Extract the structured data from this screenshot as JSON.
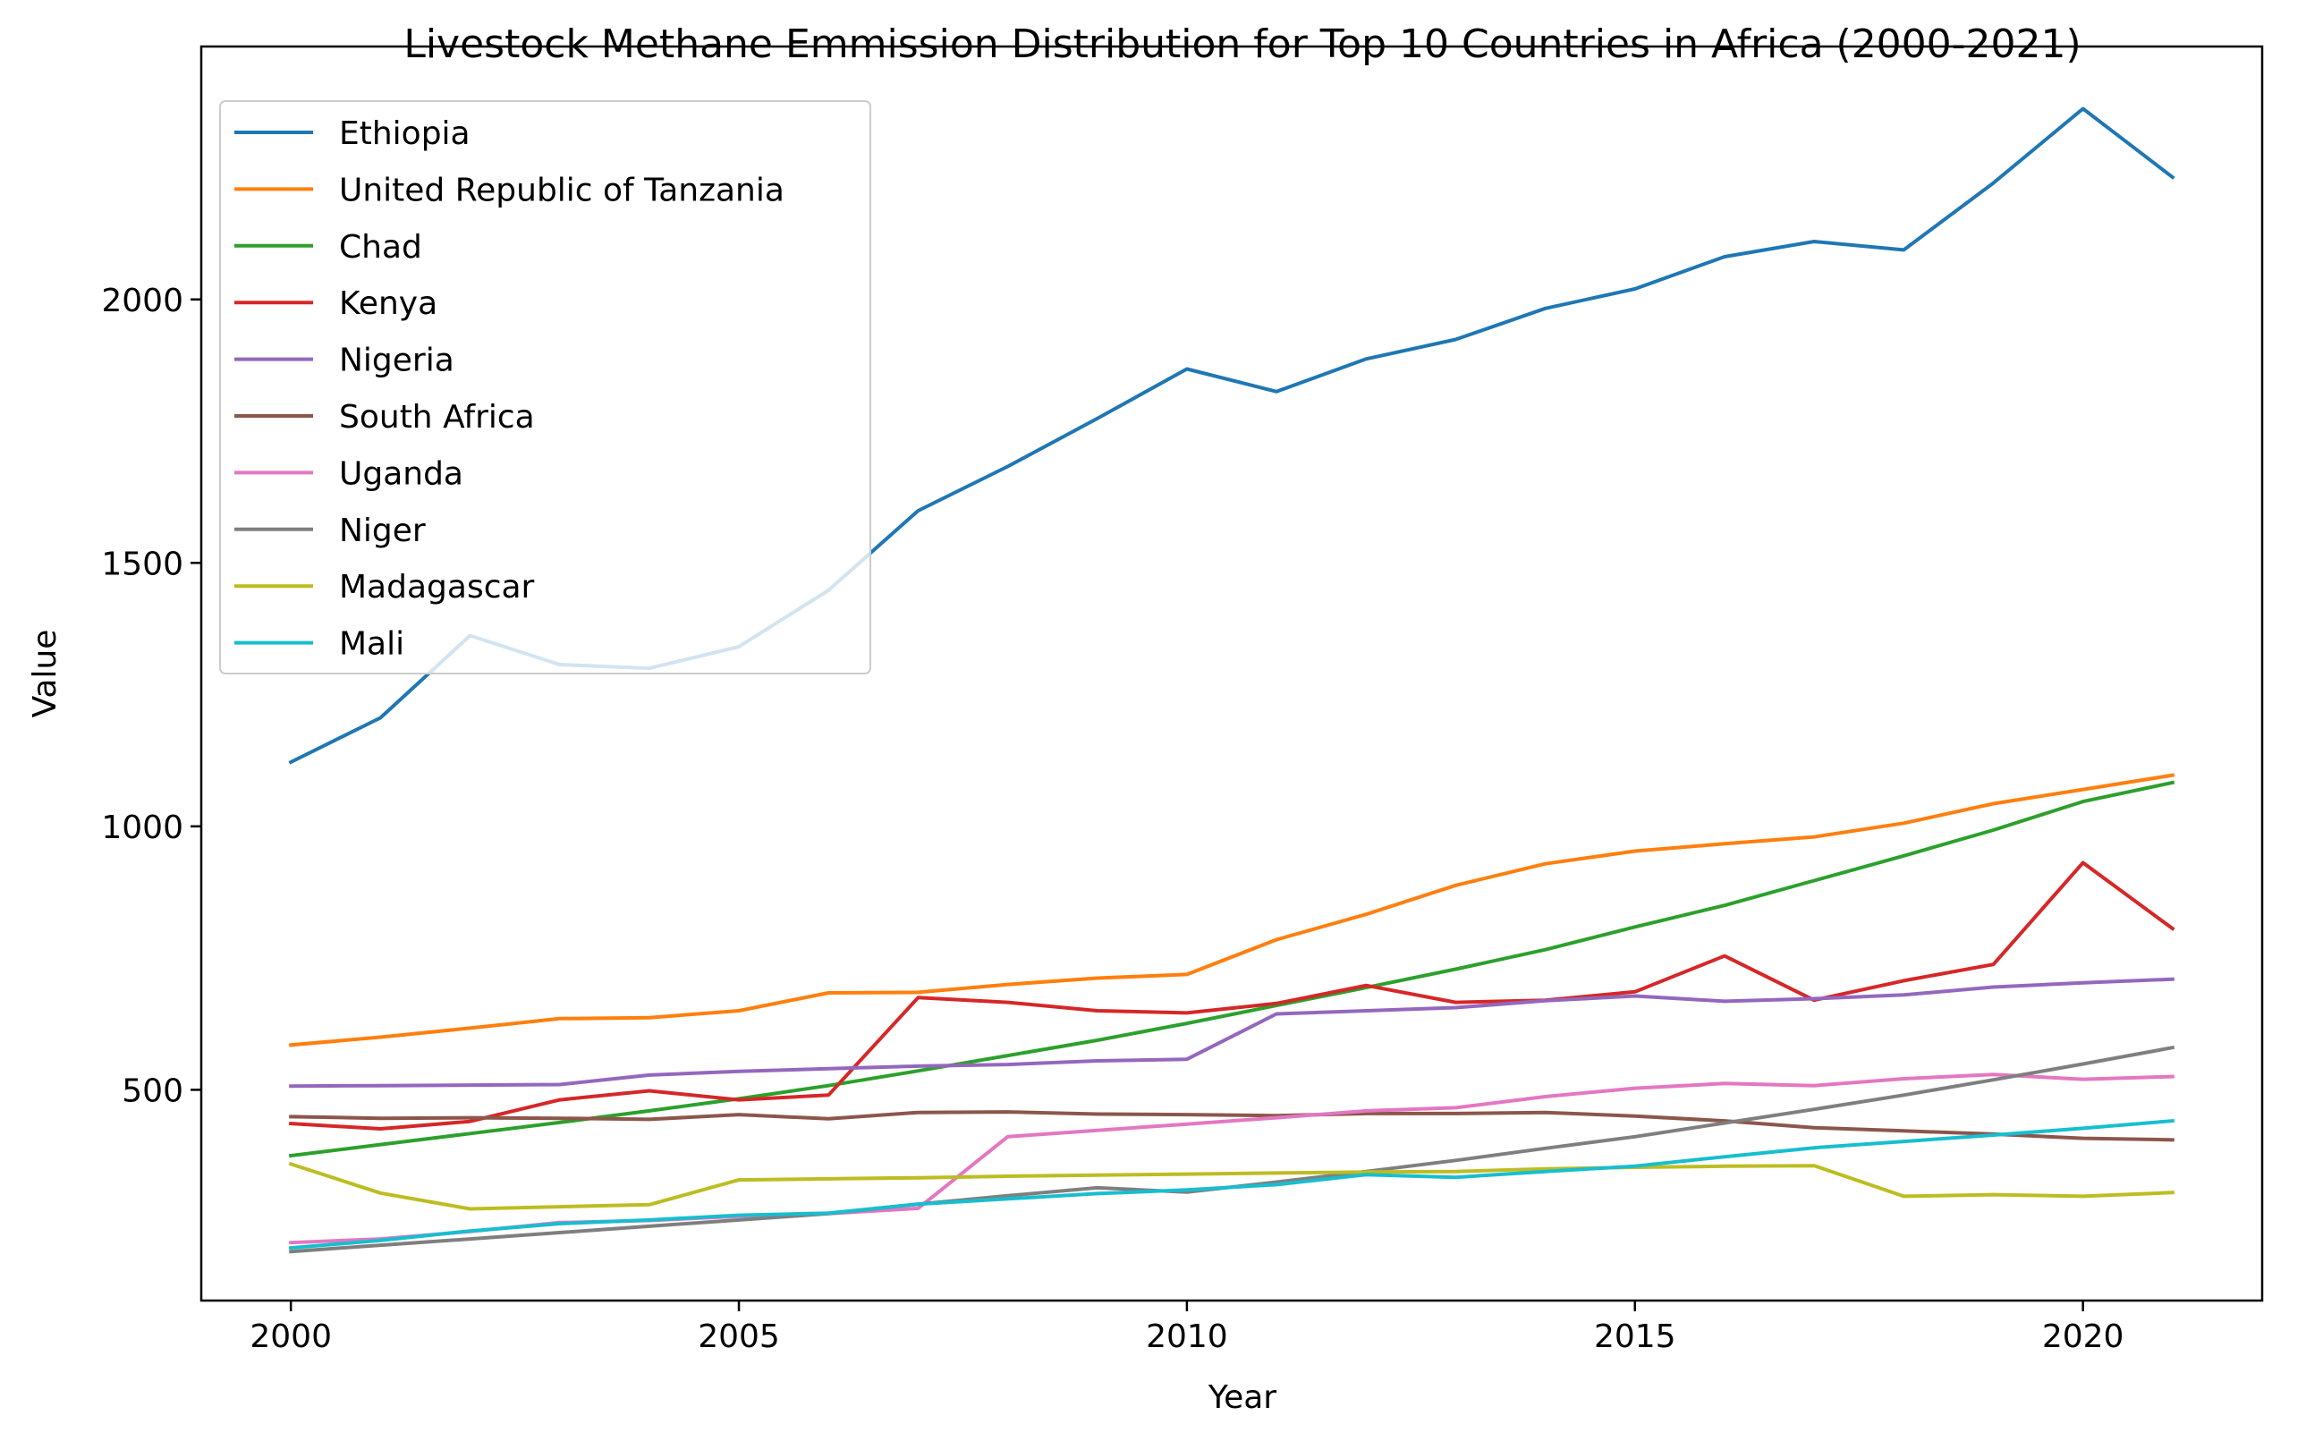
{
  "chart_data": {
    "type": "line",
    "title": "Livestock Methane Emmission Distribution for Top 10 Countries in Africa (2000-2021)",
    "xlabel": "Year",
    "ylabel": "Value",
    "xlim": [
      1999,
      2022
    ],
    "ylim": [
      100,
      2480
    ],
    "xticks": [
      2000,
      2005,
      2010,
      2015,
      2020
    ],
    "yticks": [
      500,
      1000,
      1500,
      2000
    ],
    "grid": false,
    "legend_position": "upper-left",
    "x": [
      2000,
      2001,
      2002,
      2003,
      2004,
      2005,
      2006,
      2007,
      2008,
      2009,
      2010,
      2011,
      2012,
      2013,
      2014,
      2015,
      2016,
      2017,
      2018,
      2019,
      2020,
      2021
    ],
    "series": [
      {
        "name": "Ethiopia",
        "color": "#1f77b4",
        "values": [
          1122,
          1206,
          1362,
          1307,
          1300,
          1341,
          1448,
          1599,
          1683,
          1774,
          1868,
          1825,
          1887,
          1924,
          1983,
          2020,
          2081,
          2110,
          2094,
          2221,
          2362,
          2232
        ]
      },
      {
        "name": "United Republic of Tanzania",
        "color": "#ff7f0e",
        "values": [
          585,
          600,
          617,
          635,
          637,
          650,
          684,
          685,
          700,
          712,
          719,
          785,
          833,
          888,
          929,
          953,
          967,
          980,
          1006,
          1043,
          1070,
          1097
        ]
      },
      {
        "name": "Chad",
        "color": "#2ca02c",
        "values": [
          375,
          396,
          417,
          438,
          460,
          483,
          508,
          536,
          565,
          594,
          626,
          660,
          694,
          729,
          766,
          809,
          850,
          897,
          944,
          993,
          1047,
          1083
        ]
      },
      {
        "name": "Kenya",
        "color": "#d62728",
        "values": [
          436,
          426,
          440,
          481,
          498,
          481,
          490,
          675,
          666,
          650,
          646,
          664,
          698,
          666,
          670,
          686,
          754,
          670,
          707,
          738,
          931,
          806
        ]
      },
      {
        "name": "Nigeria",
        "color": "#9467bd",
        "values": [
          507,
          508,
          509,
          510,
          528,
          535,
          540,
          545,
          548,
          555,
          558,
          644,
          650,
          656,
          669,
          678,
          668,
          673,
          680,
          695,
          703,
          710
        ]
      },
      {
        "name": "South Africa",
        "color": "#8c564b",
        "values": [
          449,
          446,
          447,
          446,
          444,
          453,
          445,
          457,
          458,
          454,
          453,
          451,
          455,
          455,
          457,
          450,
          441,
          428,
          422,
          416,
          408,
          405
        ]
      },
      {
        "name": "Uganda",
        "color": "#e377c2",
        "values": [
          210,
          217,
          231,
          248,
          252,
          260,
          265,
          275,
          411,
          423,
          435,
          447,
          460,
          466,
          487,
          503,
          512,
          508,
          521,
          529,
          520,
          525
        ]
      },
      {
        "name": "Niger",
        "color": "#7f7f7f",
        "values": [
          193,
          205,
          217,
          229,
          241,
          253,
          265,
          283,
          299,
          314,
          306,
          325,
          345,
          366,
          389,
          411,
          437,
          463,
          490,
          519,
          549,
          580
        ]
      },
      {
        "name": "Madagascar",
        "color": "#bcbd22",
        "values": [
          359,
          304,
          274,
          278,
          282,
          329,
          331,
          333,
          336,
          338,
          340,
          342,
          344,
          345,
          350,
          353,
          355,
          356,
          298,
          301,
          298,
          305
        ]
      },
      {
        "name": "Mali",
        "color": "#17becf",
        "values": [
          200,
          214,
          232,
          246,
          253,
          262,
          266,
          283,
          293,
          303,
          310,
          320,
          339,
          334,
          345,
          355,
          373,
          390,
          402,
          414,
          427,
          441
        ]
      }
    ]
  }
}
